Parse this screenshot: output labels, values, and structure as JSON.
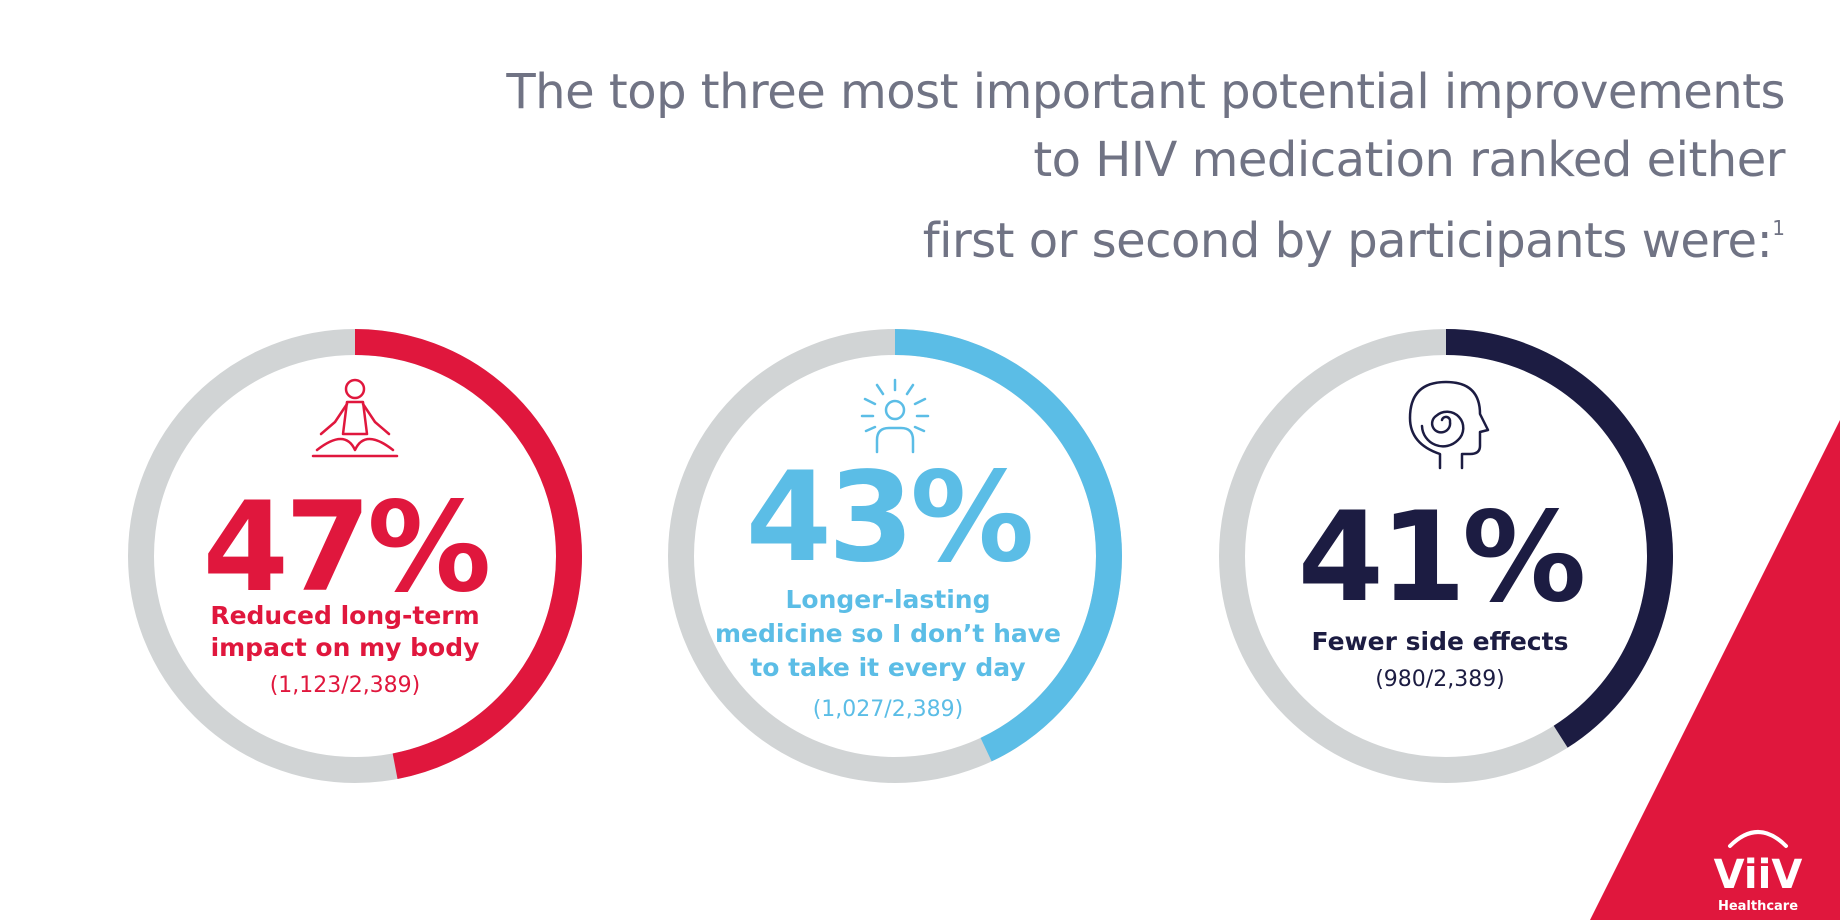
{
  "title_lines": [
    "The top three most important potential improvements",
    "to HIV medication ranked either",
    "first or second by participants were:"
  ],
  "title_footnote": "1",
  "chart_data": {
    "type": "donut",
    "track_color": "#d1d4d5",
    "items": [
      {
        "value": 47,
        "value_label": "47%",
        "label_lines": [
          "Reduced long-term",
          "impact on my body"
        ],
        "count": "(1,123/2,389)",
        "color": "#e0173d",
        "icon": "meditation-icon"
      },
      {
        "value": 43,
        "value_label": "43%",
        "label_lines": [
          "Longer-lasting",
          "medicine so I don’t have",
          "to take it every day"
        ],
        "count": "(1,027/2,389)",
        "color": "#5bbde6",
        "icon": "glowing-person-icon"
      },
      {
        "value": 41,
        "value_label": "41%",
        "label_lines": [
          "Fewer side effects"
        ],
        "count": "(980/2,389)",
        "color": "#1c1c42",
        "icon": "mind-spiral-head-icon"
      }
    ]
  },
  "brand": {
    "logo_text": "ViiV",
    "logo_subtext": "Healthcare",
    "accent_color": "#e0173d"
  }
}
